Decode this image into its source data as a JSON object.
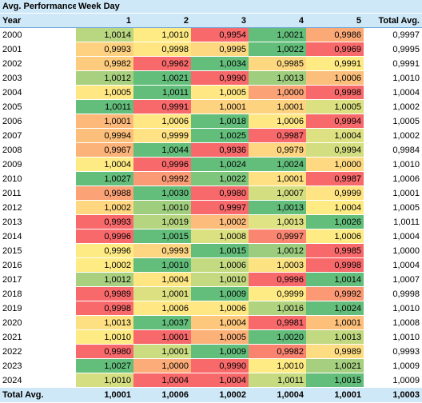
{
  "header": {
    "title": "Avg. Performance",
    "col_group": "Week Day",
    "row_label": "Year",
    "days": [
      "1",
      "2",
      "3",
      "4",
      "5"
    ],
    "total_label": "Total Avg."
  },
  "rows": [
    {
      "year": "2000",
      "values": [
        "1,0014",
        "1,0010",
        "0,9954",
        "1,0021",
        "0,9986"
      ],
      "colors": [
        "#b9d680",
        "#ffeb84",
        "#f8696b",
        "#63be7b",
        "#fbaa77"
      ],
      "total": "0,9997"
    },
    {
      "year": "2001",
      "values": [
        "0,9993",
        "0,9998",
        "0,9995",
        "1,0022",
        "0,9969"
      ],
      "colors": [
        "#fdd17f",
        "#ffe683",
        "#fed880",
        "#63be7b",
        "#f8696b"
      ],
      "total": "0,9995"
    },
    {
      "year": "2002",
      "values": [
        "0,9982",
        "0,9962",
        "1,0034",
        "0,9985",
        "0,9991"
      ],
      "colors": [
        "#fdcb7d",
        "#f8696b",
        "#63be7b",
        "#fed880",
        "#ffeb84"
      ],
      "total": "0,9991"
    },
    {
      "year": "2003",
      "values": [
        "1,0012",
        "1,0021",
        "0,9990",
        "1,0013",
        "1,0006"
      ],
      "colors": [
        "#a8d07f",
        "#63be7b",
        "#f8696b",
        "#a0ce7f",
        "#fcbf7b"
      ],
      "total": "1,0010"
    },
    {
      "year": "2004",
      "values": [
        "1,0005",
        "1,0011",
        "1,0005",
        "1,0000",
        "0,9998"
      ],
      "colors": [
        "#ffe884",
        "#63be7b",
        "#ffe884",
        "#fba276",
        "#f8696b"
      ],
      "total": "1,0004"
    },
    {
      "year": "2005",
      "values": [
        "1,0011",
        "0,9991",
        "1,0001",
        "1,0001",
        "1,0005"
      ],
      "colors": [
        "#63be7b",
        "#f8696b",
        "#fed380",
        "#fed380",
        "#dbe081"
      ],
      "total": "1,0002"
    },
    {
      "year": "2006",
      "values": [
        "1,0001",
        "1,0006",
        "1,0018",
        "1,0006",
        "0,9994"
      ],
      "colors": [
        "#fcb97a",
        "#ffe784",
        "#63be7b",
        "#ffe784",
        "#f8696b"
      ],
      "total": "1,0005"
    },
    {
      "year": "2007",
      "values": [
        "0,9994",
        "0,9999",
        "1,0025",
        "0,9987",
        "1,0004"
      ],
      "colors": [
        "#fcbf7b",
        "#ffe283",
        "#63be7b",
        "#f8696b",
        "#dde182"
      ],
      "total": "1,0002"
    },
    {
      "year": "2008",
      "values": [
        "0,9967",
        "1,0044",
        "0,9936",
        "0,9979",
        "0,9994"
      ],
      "colors": [
        "#fcb37a",
        "#63be7b",
        "#f8696b",
        "#fed580",
        "#d3de81"
      ],
      "total": "0,9984"
    },
    {
      "year": "2009",
      "values": [
        "1,0004",
        "0,9996",
        "1,0024",
        "1,0024",
        "1,0000"
      ],
      "colors": [
        "#ffeb84",
        "#f8696b",
        "#63be7b",
        "#63be7b",
        "#fed981"
      ],
      "total": "1,0010"
    },
    {
      "year": "2010",
      "values": [
        "1,0027",
        "0,9992",
        "1,0022",
        "1,0001",
        "0,9987"
      ],
      "colors": [
        "#63be7b",
        "#fb9b75",
        "#7fc67d",
        "#ffe082",
        "#f8696b"
      ],
      "total": "1,0006"
    },
    {
      "year": "2011",
      "values": [
        "0,9988",
        "1,0030",
        "0,9980",
        "1,0007",
        "0,9999"
      ],
      "colors": [
        "#fba276",
        "#63be7b",
        "#f8696b",
        "#d3de81",
        "#ffe483"
      ],
      "total": "1,0001"
    },
    {
      "year": "2012",
      "values": [
        "1,0002",
        "1,0010",
        "0,9997",
        "1,0013",
        "1,0004"
      ],
      "colors": [
        "#ffd780",
        "#a0ce7f",
        "#f8696b",
        "#63be7b",
        "#ffeb84"
      ],
      "total": "1,0005"
    },
    {
      "year": "2013",
      "values": [
        "0,9993",
        "1,0019",
        "1,0002",
        "1,0013",
        "1,0026"
      ],
      "colors": [
        "#f8696b",
        "#b6d580",
        "#fcbc7b",
        "#e0e383",
        "#63be7b"
      ],
      "total": "1,0011"
    },
    {
      "year": "2014",
      "values": [
        "0,9996",
        "1,0015",
        "1,0008",
        "0,9997",
        "1,0006"
      ],
      "colors": [
        "#f8696b",
        "#63be7b",
        "#dbe081",
        "#fa8672",
        "#ffeb84"
      ],
      "total": "1,0004"
    },
    {
      "year": "2015",
      "values": [
        "0,9996",
        "0,9993",
        "1,0015",
        "1,0012",
        "0,9985"
      ],
      "colors": [
        "#ffeb84",
        "#fed580",
        "#63be7b",
        "#9ccd7f",
        "#f8696b"
      ],
      "total": "1,0000"
    },
    {
      "year": "2016",
      "values": [
        "1,0002",
        "1,0010",
        "1,0006",
        "1,0003",
        "0,9998"
      ],
      "colors": [
        "#ffeb84",
        "#63be7b",
        "#c4da81",
        "#fde282",
        "#f8696b"
      ],
      "total": "1,0004"
    },
    {
      "year": "2017",
      "values": [
        "1,0012",
        "1,0004",
        "1,0010",
        "0,9996",
        "1,0014"
      ],
      "colors": [
        "#a8d07f",
        "#ffe683",
        "#c4d980",
        "#f8696b",
        "#63be7b"
      ],
      "total": "1,0007"
    },
    {
      "year": "2018",
      "values": [
        "0,9989",
        "1,0001",
        "1,0009",
        "0,9999",
        "0,9992"
      ],
      "colors": [
        "#f8696b",
        "#dce081",
        "#63be7b",
        "#ffeb84",
        "#fb9974"
      ],
      "total": "0,9998"
    },
    {
      "year": "2019",
      "values": [
        "0,9998",
        "1,0006",
        "1,0006",
        "1,0016",
        "1,0024"
      ],
      "colors": [
        "#f8696b",
        "#ffe783",
        "#ffe783",
        "#b0d37f",
        "#63be7b"
      ],
      "total": "1,0010"
    },
    {
      "year": "2020",
      "values": [
        "1,0013",
        "1,0037",
        "1,0004",
        "0,9981",
        "1,0001"
      ],
      "colors": [
        "#fde081",
        "#63be7b",
        "#fdc77c",
        "#f8696b",
        "#fcc07b"
      ],
      "total": "1,0008"
    },
    {
      "year": "2021",
      "values": [
        "1,0010",
        "1,0001",
        "1,0005",
        "1,0020",
        "1,0013"
      ],
      "colors": [
        "#ffeb84",
        "#f8696b",
        "#fcb179",
        "#63be7b",
        "#c1d980"
      ],
      "total": "1,0010"
    },
    {
      "year": "2022",
      "values": [
        "0,9980",
        "1,0001",
        "1,0009",
        "0,9982",
        "0,9989"
      ],
      "colors": [
        "#f8696b",
        "#cbdc81",
        "#63be7b",
        "#fa8370",
        "#fedd82"
      ],
      "total": "0,9993"
    },
    {
      "year": "2023",
      "values": [
        "1,0027",
        "1,0000",
        "0,9990",
        "1,0010",
        "1,0021"
      ],
      "colors": [
        "#63be7b",
        "#fbac78",
        "#f8696b",
        "#ffeb84",
        "#a6d07f"
      ],
      "total": "1,0009"
    },
    {
      "year": "2024",
      "values": [
        "1,0010",
        "1,0004",
        "1,0004",
        "1,0011",
        "1,0015"
      ],
      "colors": [
        "#d5df81",
        "#f8696b",
        "#f8696b",
        "#c6db81",
        "#63be7b"
      ],
      "total": "1,0009"
    }
  ],
  "totals": {
    "label": "Total Avg.",
    "values": [
      "1,0001",
      "1,0006",
      "1,0002",
      "1,0004",
      "1,0001"
    ],
    "grand": "1,0003"
  }
}
